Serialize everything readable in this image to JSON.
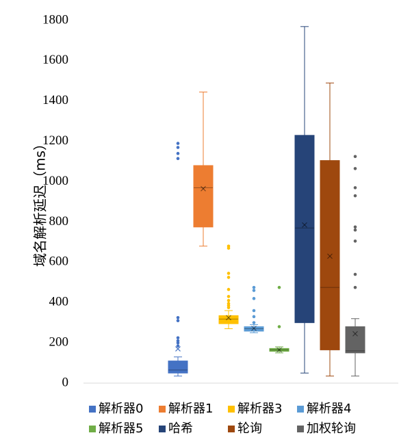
{
  "chart_data": {
    "type": "box",
    "ylabel": "域名解析延迟（ms）",
    "ylim": [
      0,
      1800
    ],
    "yticks": [
      "0",
      "200",
      "400",
      "600",
      "800",
      "1000",
      "1200",
      "1400",
      "1600",
      "1800"
    ],
    "grid": false,
    "legend_position": "bottom",
    "series": [
      {
        "name": "解析器0",
        "color": "#4472c4",
        "min": 35,
        "q1": 50,
        "median": 65,
        "q3": 110,
        "max": 130,
        "mean": 170,
        "outliers": [
          185,
          200,
          210,
          225,
          310,
          325,
          1115,
          1140,
          1170,
          1190
        ]
      },
      {
        "name": "解析器1",
        "color": "#ed7d31",
        "min": 680,
        "q1": 775,
        "median": 970,
        "q3": 1080,
        "max": 1445,
        "mean": 965,
        "outliers": []
      },
      {
        "name": "解析器3",
        "color": "#ffc000",
        "min": 270,
        "q1": 295,
        "median": 318,
        "q3": 335,
        "max": 360,
        "mean": 325,
        "outliers": [
          375,
          385,
          395,
          410,
          430,
          465,
          525,
          545,
          670,
          680
        ]
      },
      {
        "name": "解析器4",
        "color": "#5b9bd5",
        "min": 250,
        "q1": 258,
        "median": 270,
        "q3": 280,
        "max": 290,
        "mean": 272,
        "outliers": [
          300,
          330,
          360,
          420,
          460,
          475
        ]
      },
      {
        "name": "解析器5",
        "color": "#70ad47",
        "min": 150,
        "q1": 158,
        "median": 165,
        "q3": 172,
        "max": 180,
        "mean": 165,
        "outliers": [
          280,
          475
        ]
      },
      {
        "name": "哈希",
        "color": "#264478",
        "min": 50,
        "q1": 300,
        "median": 770,
        "q3": 1230,
        "max": 1770,
        "mean": 785,
        "outliers": []
      },
      {
        "name": "轮询",
        "color": "#9e480e",
        "min": 35,
        "q1": 165,
        "median": 475,
        "q3": 1105,
        "max": 1490,
        "mean": 630,
        "outliers": []
      },
      {
        "name": "加权轮询",
        "color": "#636363",
        "min": 35,
        "q1": 150,
        "median": 160,
        "q3": 280,
        "max": 320,
        "mean": 245,
        "outliers": [
          475,
          540,
          705,
          760,
          775,
          930,
          970,
          1065,
          1125
        ]
      }
    ]
  }
}
